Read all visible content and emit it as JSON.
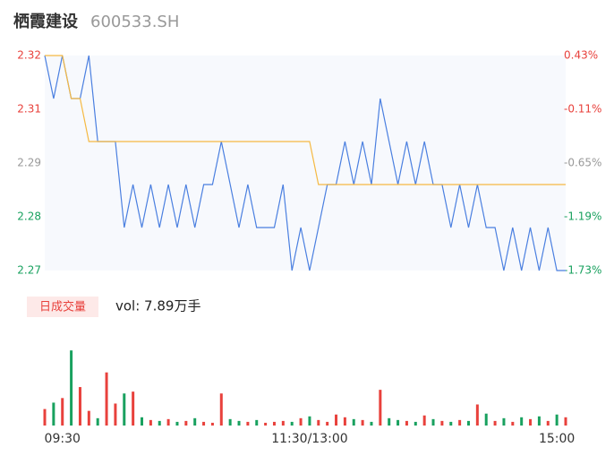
{
  "header": {
    "name": "栖霞建设",
    "code": "600533.SH"
  },
  "chart_data": {
    "type": "intraday",
    "ylim": [
      2.27,
      2.32
    ],
    "yticks": [
      2.32,
      {
        "value": 2.3075,
        "label": "2.31"
      },
      {
        "value": 2.295,
        "label": "2.29"
      },
      {
        "value": 2.2825,
        "label": "2.28"
      },
      2.27
    ],
    "ytick_colors": [
      "#e8413c",
      "#e8413c",
      "#999999",
      "#19a15f",
      "#19a15f"
    ],
    "y2lim": [
      -1.73,
      0.43
    ],
    "y2ticks": [
      {
        "value": 0.43,
        "label": "0.43%"
      },
      {
        "value": -0.11,
        "label": "-0.11%"
      },
      {
        "value": -0.65,
        "label": "-0.65%"
      },
      {
        "value": -1.19,
        "label": "-1.19%"
      },
      {
        "value": -1.73,
        "label": "-1.73%"
      }
    ],
    "xticks": [
      {
        "value": 2,
        "label": "09:30"
      },
      {
        "value": 30,
        "label": "11:30/13:00"
      },
      {
        "value": 58,
        "label": "15:00"
      }
    ],
    "series": [
      {
        "name": "price",
        "color": "#4a7fe0",
        "values": [
          2.32,
          2.31,
          2.32,
          2.31,
          2.31,
          2.32,
          2.3,
          2.3,
          2.3,
          2.28,
          2.29,
          2.28,
          2.29,
          2.28,
          2.29,
          2.28,
          2.29,
          2.28,
          2.29,
          2.29,
          2.3,
          2.29,
          2.28,
          2.29,
          2.28,
          2.28,
          2.28,
          2.29,
          2.27,
          2.28,
          2.27,
          2.28,
          2.29,
          2.29,
          2.3,
          2.29,
          2.3,
          2.29,
          2.31,
          2.3,
          2.29,
          2.3,
          2.29,
          2.3,
          2.29,
          2.29,
          2.28,
          2.29,
          2.28,
          2.29,
          2.28,
          2.28,
          2.27,
          2.28,
          2.27,
          2.28,
          2.27,
          2.28,
          2.27,
          2.27
        ]
      },
      {
        "name": "average",
        "color": "#f5b942",
        "values": [
          2.32,
          2.32,
          2.32,
          2.31,
          2.31,
          2.3,
          2.3,
          2.3,
          2.3,
          2.3,
          2.3,
          2.3,
          2.3,
          2.3,
          2.3,
          2.3,
          2.3,
          2.3,
          2.3,
          2.3,
          2.3,
          2.3,
          2.3,
          2.3,
          2.3,
          2.3,
          2.3,
          2.3,
          2.3,
          2.3,
          2.3,
          2.29,
          2.29,
          2.29,
          2.29,
          2.29,
          2.29,
          2.29,
          2.29,
          2.29,
          2.29,
          2.29,
          2.29,
          2.29,
          2.29,
          2.29,
          2.29,
          2.29,
          2.29,
          2.29,
          2.29,
          2.29,
          2.29,
          2.29,
          2.29,
          2.29,
          2.29,
          2.29,
          2.29,
          2.29
        ]
      }
    ],
    "volume": {
      "legend": "日成交量",
      "label": "vol: 7.89万手",
      "ylim": [
        0,
        9000
      ],
      "up_color": "#e8413c",
      "down_color": "#19a15f",
      "values": [
        1800,
        2500,
        3000,
        8200,
        4200,
        1600,
        800,
        5800,
        2400,
        3500,
        3700,
        900,
        600,
        500,
        700,
        400,
        500,
        800,
        400,
        300,
        3500,
        700,
        500,
        400,
        600,
        300,
        400,
        500,
        400,
        800,
        1000,
        600,
        400,
        1200,
        900,
        700,
        600,
        400,
        3900,
        800,
        600,
        500,
        400,
        1100,
        700,
        500,
        400,
        600,
        500,
        2300,
        1300,
        500,
        800,
        400,
        900,
        700,
        1000,
        500,
        1200,
        900
      ]
    }
  }
}
